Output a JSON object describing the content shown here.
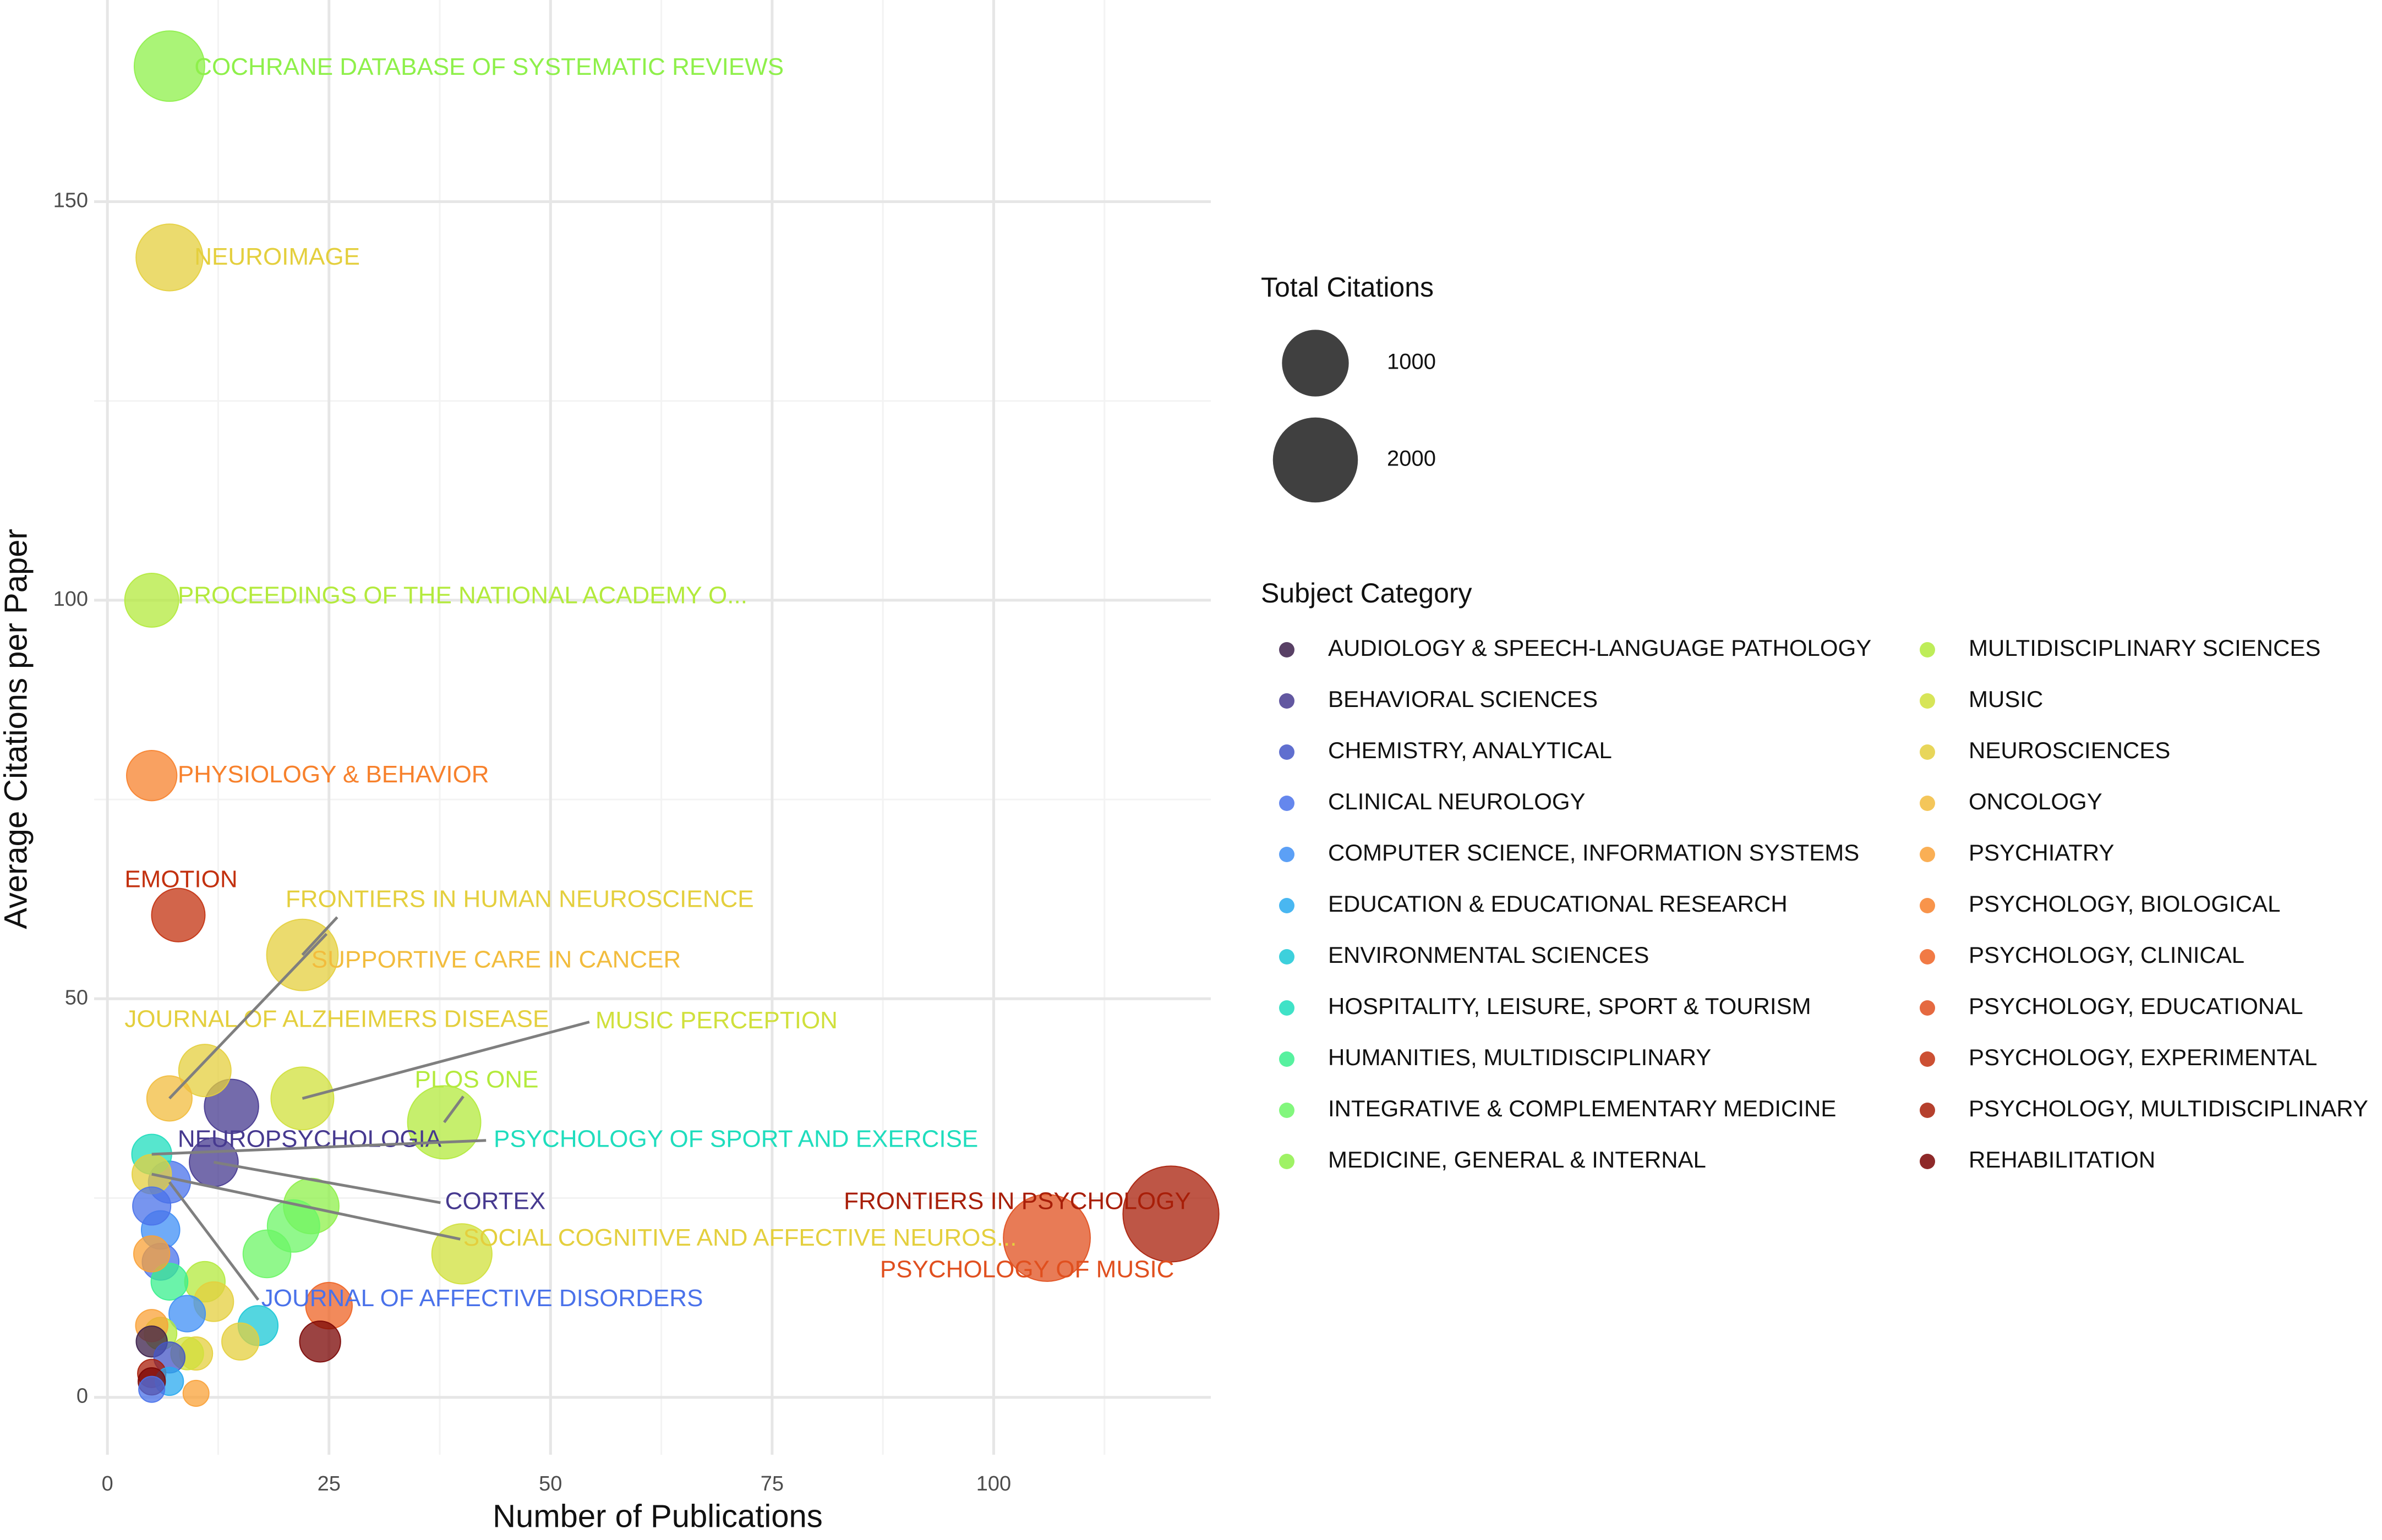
{
  "chart_data": {
    "type": "bubble",
    "x_label": "Number of Publications",
    "y_label": "Average Citations per Paper",
    "xlim": [
      -1.5,
      124.5
    ],
    "ylim": [
      -7.2,
      175.3
    ],
    "xticks": [
      0,
      25,
      50,
      75,
      100
    ],
    "yticks": [
      0,
      50,
      100,
      150
    ],
    "xminor": [
      12.5,
      37.5,
      62.5,
      87.5,
      112.5
    ],
    "yminor": [
      25,
      75,
      125
    ],
    "grid": true,
    "size_legend": {
      "title": "Total Citations",
      "values": [
        1000,
        2000
      ]
    },
    "color_legend_title": "Subject Category",
    "series": [
      {
        "name": "AUDIOLOGY & SPEECH-LANGUAGE PATHOLOGY",
        "color": "#3b1f4a",
        "x": [
          5
        ],
        "values": [
          7
        ],
        "sizes": [
          35
        ],
        "labels": [
          null
        ]
      },
      {
        "name": "BEHAVIORAL SCIENCES",
        "color": "#46398f",
        "x": [
          14,
          12
        ],
        "values": [
          36.5,
          29.5
        ],
        "sizes": [
          510,
          350
        ],
        "labels": [
          "NEUROPSYCHOLOGIA",
          "CORTEX"
        ]
      },
      {
        "name": "CHEMISTRY, ANALYTICAL",
        "color": "#4456c7",
        "x": [
          7
        ],
        "values": [
          5
        ],
        "sizes": [
          35
        ],
        "labels": [
          null
        ]
      },
      {
        "name": "CLINICAL NEUROLOGY",
        "color": "#4a72ea",
        "x": [
          7,
          5,
          6,
          5
        ],
        "values": [
          27,
          24,
          17,
          1
        ],
        "sizes": [
          190,
          120,
          100,
          5
        ],
        "labels": [
          "JOURNAL OF AFFECTIVE DISORDERS",
          null,
          null,
          null
        ]
      },
      {
        "name": "COMPUTER SCIENCE, INFORMATION SYSTEMS",
        "color": "#3f8ff5",
        "x": [
          9,
          6
        ],
        "values": [
          10.5,
          21
        ],
        "sizes": [
          95,
          125
        ],
        "labels": [
          null,
          null
        ]
      },
      {
        "name": "EDUCATION & EDUCATIONAL RESEARCH",
        "color": "#29aaef",
        "x": [
          7
        ],
        "values": [
          2
        ],
        "sizes": [
          14
        ],
        "labels": [
          null
        ]
      },
      {
        "name": "ENVIRONMENTAL SCIENCES",
        "color": "#1bc8d6",
        "x": [
          17
        ],
        "values": [
          9
        ],
        "sizes": [
          150
        ],
        "labels": [
          null
        ]
      },
      {
        "name": "HOSPITALITY, LEISURE, SPORT & TOURISM",
        "color": "#1fddbd",
        "x": [
          5
        ],
        "values": [
          30.5
        ],
        "sizes": [
          150
        ],
        "labels": [
          "PSYCHOLOGY OF SPORT AND EXERCISE"
        ]
      },
      {
        "name": "HUMANITIES, MULTIDISCIPLINARY",
        "color": "#3aef8e",
        "x": [
          7
        ],
        "values": [
          14.5
        ],
        "sizes": [
          100
        ],
        "labels": [
          null
        ]
      },
      {
        "name": "INTEGRATIVE & COMPLEMENTARY MEDICINE",
        "color": "#6cf666",
        "x": [
          21,
          18
        ],
        "values": [
          21.5,
          18
        ],
        "sizes": [
          450,
          320
        ],
        "labels": [
          null,
          null
        ]
      },
      {
        "name": "MEDICINE, GENERAL & INTERNAL",
        "color": "#8ef04a",
        "x": [
          7,
          23
        ],
        "values": [
          167,
          24
        ],
        "sizes": [
          1170,
          550
        ],
        "labels": [
          "COCHRANE DATABASE OF SYSTEMATIC REVIEWS",
          null
        ]
      },
      {
        "name": "MULTIDISCIPLINARY SCIENCES",
        "color": "#b3ea3c",
        "x": [
          5,
          38,
          11,
          6
        ],
        "values": [
          100,
          34.5,
          14.5,
          8
        ],
        "sizes": [
          500,
          1310,
          160,
          48
        ],
        "labels": [
          "PROCEEDINGS OF THE NATIONAL ACADEMY O...",
          "PLOS ONE",
          null,
          null
        ]
      },
      {
        "name": "MUSIC",
        "color": "#d0e03b",
        "x": [
          22,
          40,
          9
        ],
        "values": [
          37.5,
          18,
          5.5
        ],
        "sizes": [
          825,
          720,
          50
        ],
        "labels": [
          "MUSIC PERCEPTION",
          null,
          null
        ]
      },
      {
        "name": "NEUROSCIENCES",
        "color": "#e4cf3d",
        "x": [
          7,
          22,
          11,
          5,
          12,
          15,
          10
        ],
        "values": [
          143,
          55.5,
          41,
          28,
          12,
          7,
          5.5
        ],
        "sizes": [
          1000,
          1221,
          450,
          140,
          145,
          105,
          55
        ],
        "labels": [
          "NEUROIMAGE",
          "FRONTIERS IN HUMAN NEUROSCIENCE",
          "JOURNAL OF ALZHEIMERS DISEASE",
          "SOCIAL COGNITIVE AND AFFECTIVE NEUROS...",
          null,
          null,
          null
        ]
      },
      {
        "name": "ONCOLOGY",
        "color": "#f2bc3d",
        "x": [
          7
        ],
        "values": [
          37.5
        ],
        "sizes": [
          260
        ],
        "labels": [
          "SUPPORTIVE CARE IN CANCER"
        ]
      },
      {
        "name": "PSYCHIATRY",
        "color": "#f9a137",
        "x": [
          5,
          5,
          10
        ],
        "values": [
          18,
          9,
          0.5
        ],
        "sizes": [
          90,
          45,
          5
        ],
        "labels": [
          null,
          null,
          null
        ]
      },
      {
        "name": "PSYCHOLOGY, BIOLOGICAL",
        "color": "#f7812c",
        "x": [
          5
        ],
        "values": [
          78
        ],
        "sizes": [
          390
        ],
        "labels": [
          "PHYSIOLOGY & BEHAVIOR"
        ]
      },
      {
        "name": "PSYCHOLOGY, CLINICAL",
        "color": "#ee6324",
        "x": [
          25
        ],
        "values": [
          11.5
        ],
        "sizes": [
          290
        ],
        "labels": [
          null
        ]
      },
      {
        "name": "PSYCHOLOGY, EDUCATIONAL",
        "color": "#e04f1e",
        "x": [
          106
        ],
        "values": [
          20
        ],
        "sizes": [
          2120
        ],
        "labels": [
          "PSYCHOLOGY OF MUSIC"
        ]
      },
      {
        "name": "PSYCHOLOGY, EXPERIMENTAL",
        "color": "#c3310f",
        "x": [
          8
        ],
        "values": [
          60.5
        ],
        "sizes": [
          484
        ],
        "labels": [
          "EMOTION"
        ]
      },
      {
        "name": "PSYCHOLOGY, MULTIDISCIPLINARY",
        "color": "#a81e08",
        "x": [
          120,
          5
        ],
        "values": [
          23,
          3
        ],
        "sizes": [
          2760,
          15
        ],
        "labels": [
          "FRONTIERS IN PSYCHOLOGY",
          null
        ]
      },
      {
        "name": "REHABILITATION",
        "color": "#7a0403",
        "x": [
          24,
          5
        ],
        "values": [
          7,
          2
        ],
        "sizes": [
          170,
          10
        ],
        "labels": [
          null,
          null
        ]
      }
    ]
  }
}
